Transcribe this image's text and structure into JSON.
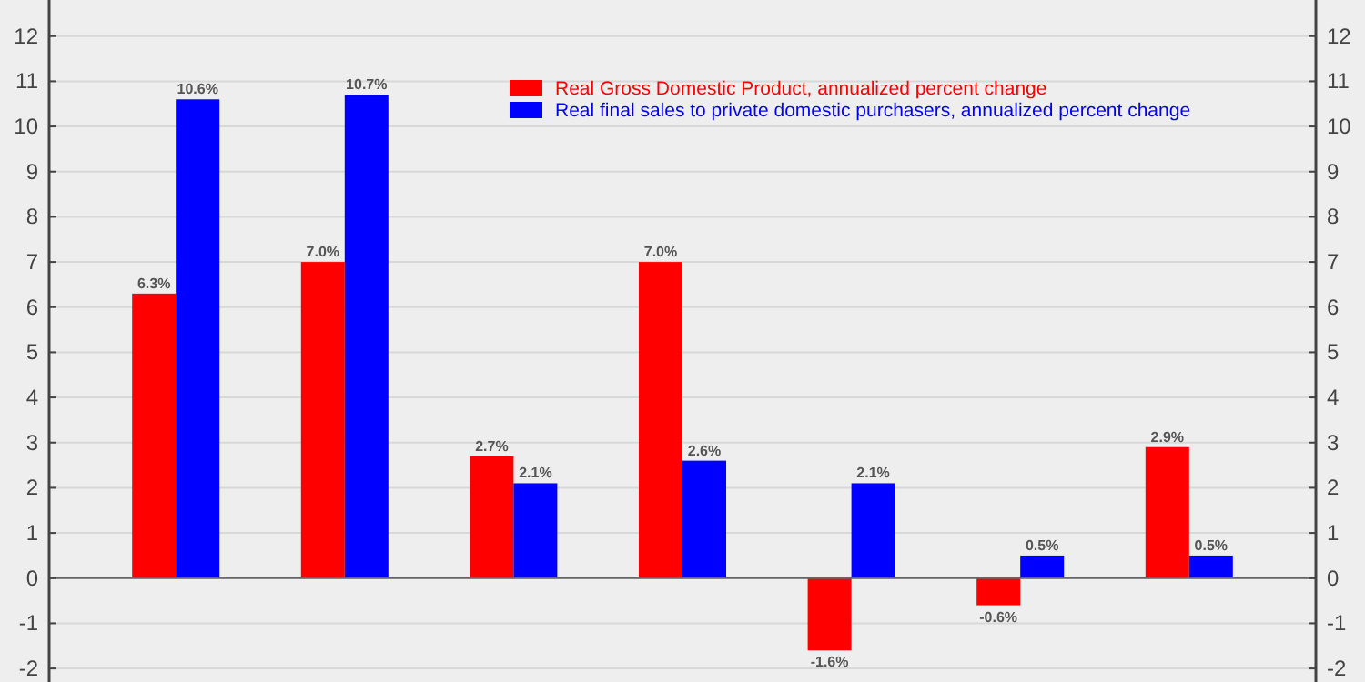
{
  "chart_data": {
    "type": "bar",
    "categories": [
      null,
      null,
      null,
      null,
      null,
      null,
      null
    ],
    "series": [
      {
        "name": "Real Gross Domestic Product, annualized percent change",
        "color": "#ff0000",
        "values": [
          6.3,
          7.0,
          2.7,
          7.0,
          -1.6,
          -0.6,
          2.9
        ],
        "value_labels": [
          "6.3%",
          "7.0%",
          "2.7%",
          "7.0%",
          "-1.6%",
          "-0.6%",
          "2.9%"
        ]
      },
      {
        "name": "Real final sales to private domestic purchasers, annualized percent change",
        "color": "#0000ff",
        "values": [
          10.6,
          10.7,
          2.1,
          2.6,
          2.1,
          0.5,
          0.5
        ],
        "value_labels": [
          "10.6%",
          "10.7%",
          "2.1%",
          "2.6%",
          "2.1%",
          "0.5%",
          "0.5%"
        ]
      }
    ],
    "ylim": [
      -2.3,
      12.8
    ],
    "yticks": [
      -2,
      -1,
      0,
      1,
      2,
      3,
      4,
      5,
      6,
      7,
      8,
      9,
      10,
      11,
      12
    ],
    "y2lim": [
      -2.3,
      12.8
    ],
    "y2ticks": [
      -2,
      -1,
      0,
      1,
      2,
      3,
      4,
      5,
      6,
      7,
      8,
      9,
      10,
      11,
      12
    ],
    "grid": "y",
    "legend": "top right"
  }
}
